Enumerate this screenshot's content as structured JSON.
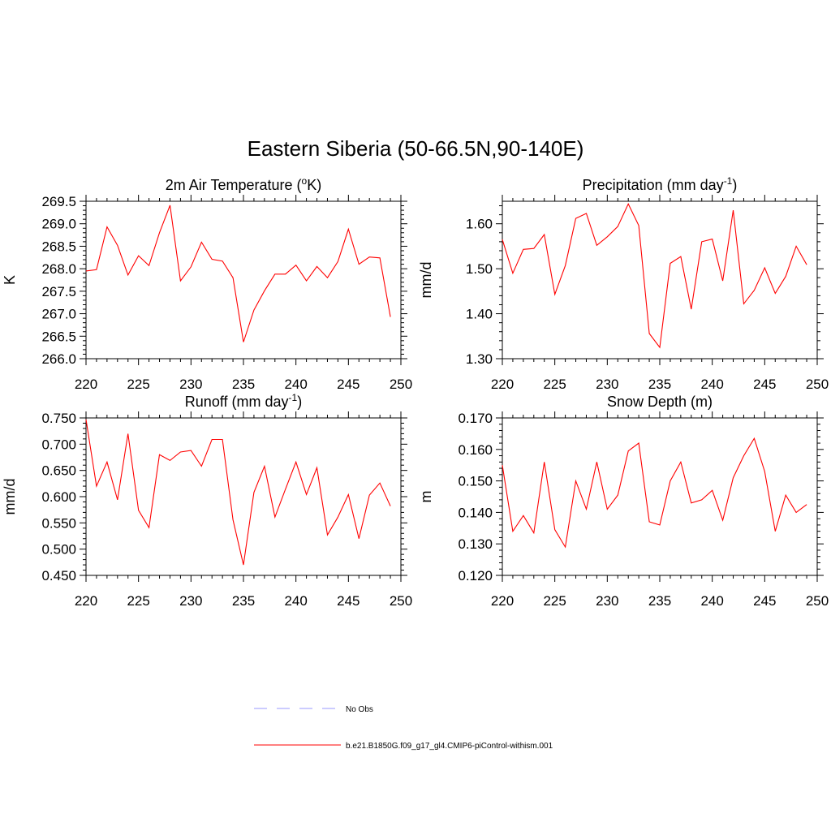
{
  "title": "Eastern Siberia (50-66.5N,90-140E)",
  "legend": {
    "entries": [
      {
        "label": "No Obs",
        "color": "#9999ff",
        "dash": true
      },
      {
        "label": "b.e21.B1850G.f09_g17_gl4.CMIP6-piControl-withism.001",
        "color": "#ff0000",
        "dash": false
      }
    ]
  },
  "chart_data": [
    {
      "type": "line",
      "title_main": "2m Air Temperature (",
      "title_sup": "o",
      "title_end": "K)",
      "ylabel": "K",
      "xlim": [
        220,
        250
      ],
      "ylim": [
        266.0,
        269.5
      ],
      "xticks": [
        "220",
        "225",
        "230",
        "235",
        "240",
        "245",
        "250"
      ],
      "yticks": [
        "266.0",
        "266.5",
        "267.0",
        "267.5",
        "268.0",
        "268.5",
        "269.0",
        "269.5"
      ],
      "color": "#ff0000",
      "x": [
        220,
        221,
        222,
        223,
        224,
        225,
        226,
        227,
        228,
        229,
        230,
        231,
        232,
        233,
        234,
        235,
        236,
        237,
        238,
        239,
        240,
        241,
        242,
        243,
        244,
        245,
        246,
        247,
        248,
        249
      ],
      "values": [
        267.95,
        267.98,
        268.93,
        268.52,
        267.86,
        268.29,
        268.07,
        268.8,
        269.41,
        267.73,
        268.04,
        268.59,
        268.21,
        268.17,
        267.8,
        266.37,
        267.08,
        267.51,
        267.88,
        267.88,
        268.08,
        267.73,
        268.05,
        267.8,
        268.16,
        268.88,
        268.1,
        268.26,
        268.24,
        266.93
      ]
    },
    {
      "type": "line",
      "title_main": "Precipitation (mm day",
      "title_sup": "-1",
      "title_end": ")",
      "ylabel": "mm/d",
      "xlim": [
        220,
        250
      ],
      "ylim": [
        1.3,
        1.65
      ],
      "xticks": [
        "220",
        "225",
        "230",
        "235",
        "240",
        "245",
        "250"
      ],
      "yticks": [
        "1.30",
        "1.40",
        "1.50",
        "1.60"
      ],
      "color": "#ff0000",
      "x": [
        220,
        221,
        222,
        223,
        224,
        225,
        226,
        227,
        228,
        229,
        230,
        231,
        232,
        233,
        234,
        235,
        236,
        237,
        238,
        239,
        240,
        241,
        242,
        243,
        244,
        245,
        246,
        247,
        248,
        249
      ],
      "values": [
        1.565,
        1.49,
        1.543,
        1.545,
        1.576,
        1.443,
        1.507,
        1.612,
        1.623,
        1.552,
        1.571,
        1.594,
        1.644,
        1.596,
        1.356,
        1.325,
        1.512,
        1.527,
        1.41,
        1.56,
        1.566,
        1.473,
        1.63,
        1.422,
        1.452,
        1.502,
        1.445,
        1.483,
        1.55,
        1.509
      ]
    },
    {
      "type": "line",
      "title_main": "Runoff (mm day",
      "title_sup": "-1",
      "title_end": ")",
      "ylabel": "mm/d",
      "xlim": [
        220,
        250
      ],
      "ylim": [
        0.45,
        0.75
      ],
      "xticks": [
        "220",
        "225",
        "230",
        "235",
        "240",
        "245",
        "250"
      ],
      "yticks": [
        "0.450",
        "0.500",
        "0.550",
        "0.600",
        "0.650",
        "0.700",
        "0.750"
      ],
      "color": "#ff0000",
      "x": [
        220,
        221,
        222,
        223,
        224,
        225,
        226,
        227,
        228,
        229,
        230,
        231,
        232,
        233,
        234,
        235,
        236,
        237,
        238,
        239,
        240,
        241,
        242,
        243,
        244,
        245,
        246,
        247,
        248,
        249
      ],
      "values": [
        0.747,
        0.62,
        0.666,
        0.594,
        0.72,
        0.574,
        0.541,
        0.68,
        0.669,
        0.685,
        0.688,
        0.658,
        0.709,
        0.709,
        0.556,
        0.47,
        0.608,
        0.658,
        0.561,
        0.614,
        0.666,
        0.604,
        0.655,
        0.527,
        0.561,
        0.604,
        0.52,
        0.603,
        0.626,
        0.582
      ]
    },
    {
      "type": "line",
      "title_main": "Snow Depth (m)",
      "title_sup": "",
      "title_end": "",
      "ylabel": "m",
      "xlim": [
        220,
        250
      ],
      "ylim": [
        0.12,
        0.17
      ],
      "xticks": [
        "220",
        "225",
        "230",
        "235",
        "240",
        "245",
        "250"
      ],
      "yticks": [
        "0.120",
        "0.130",
        "0.140",
        "0.150",
        "0.160",
        "0.170"
      ],
      "color": "#ff0000",
      "x": [
        220,
        221,
        222,
        223,
        224,
        225,
        226,
        227,
        228,
        229,
        230,
        231,
        232,
        233,
        234,
        235,
        236,
        237,
        238,
        239,
        240,
        241,
        242,
        243,
        244,
        245,
        246,
        247,
        248,
        249
      ],
      "values": [
        0.155,
        0.134,
        0.139,
        0.1335,
        0.156,
        0.1345,
        0.129,
        0.15,
        0.141,
        0.156,
        0.141,
        0.1455,
        0.1595,
        0.162,
        0.137,
        0.136,
        0.15,
        0.156,
        0.143,
        0.144,
        0.147,
        0.1375,
        0.151,
        0.158,
        0.1635,
        0.153,
        0.134,
        0.1455,
        0.14,
        0.1425
      ]
    }
  ]
}
